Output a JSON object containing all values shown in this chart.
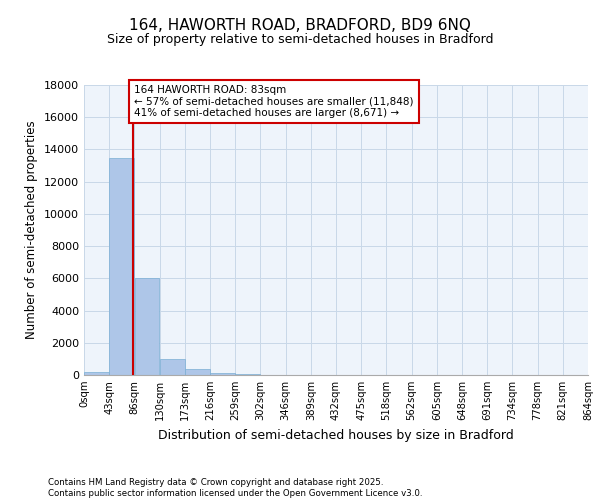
{
  "title_line1": "164, HAWORTH ROAD, BRADFORD, BD9 6NQ",
  "title_line2": "Size of property relative to semi-detached houses in Bradford",
  "xlabel": "Distribution of semi-detached houses by size in Bradford",
  "ylabel": "Number of semi-detached properties",
  "bar_values": [
    200,
    13500,
    6000,
    1000,
    350,
    100,
    50,
    0,
    0,
    0,
    0,
    0,
    0,
    0,
    0,
    0,
    0,
    0,
    0,
    0
  ],
  "bin_edges": [
    0,
    43,
    86,
    129,
    172,
    215,
    258,
    301,
    344,
    387,
    430,
    473,
    516,
    559,
    602,
    645,
    688,
    731,
    774,
    817,
    860
  ],
  "bin_labels": [
    "0sqm",
    "43sqm",
    "86sqm",
    "130sqm",
    "173sqm",
    "216sqm",
    "259sqm",
    "302sqm",
    "346sqm",
    "389sqm",
    "432sqm",
    "475sqm",
    "518sqm",
    "562sqm",
    "605sqm",
    "648sqm",
    "691sqm",
    "734sqm",
    "778sqm",
    "821sqm",
    "864sqm"
  ],
  "property_size": 83,
  "property_label": "164 HAWORTH ROAD: 83sqm",
  "annotation_line1": "← 57% of semi-detached houses are smaller (11,848)",
  "annotation_line2": "41% of semi-detached houses are larger (8,671) →",
  "bar_color": "#aec6e8",
  "bar_edge_color": "#7bafd4",
  "vline_color": "#cc0000",
  "annotation_box_edge_color": "#cc0000",
  "ylim": [
    0,
    18000
  ],
  "yticks": [
    0,
    2000,
    4000,
    6000,
    8000,
    10000,
    12000,
    14000,
    16000,
    18000
  ],
  "grid_color": "#c8d8e8",
  "bg_color": "#eef4fb",
  "footer_line1": "Contains HM Land Registry data © Crown copyright and database right 2025.",
  "footer_line2": "Contains public sector information licensed under the Open Government Licence v3.0."
}
